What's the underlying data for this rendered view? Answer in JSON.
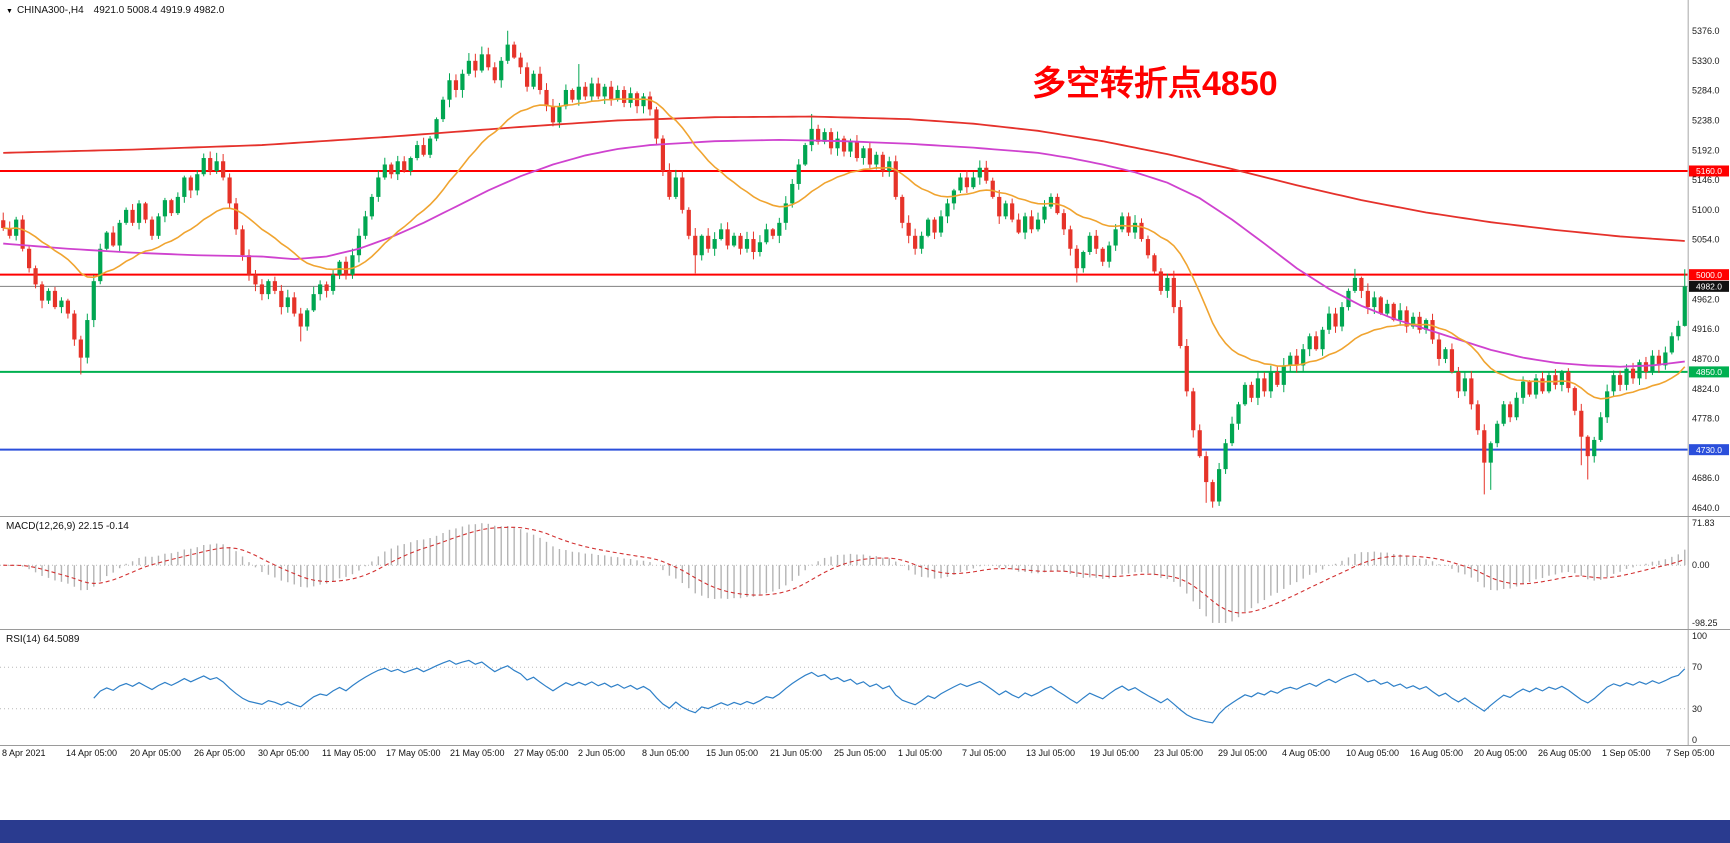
{
  "header": {
    "dropdown_icon": "▼",
    "symbol_period": "CHINA300-,H4",
    "ohlc_text": "4921.0 5008.4 4919.9 4982.0"
  },
  "annotation": {
    "text": "多空转折点4850",
    "color": "#ff0000"
  },
  "panels": {
    "macd": {
      "label": "MACD(12,26,9) 22.15 -0.14"
    },
    "rsi": {
      "label": "RSI(14) 64.5089"
    }
  },
  "ui": {
    "taskbar_color": "#2a3b8f",
    "background": "#ffffff",
    "separator_color": "#9a9a9a"
  },
  "chart_data": {
    "type": "candlestick",
    "symbol": "CHINA300-",
    "timeframe": "H4",
    "current_bar": {
      "open": 4921.0,
      "high": 5008.4,
      "low": 4919.9,
      "close": 4982.0
    },
    "price_range": [
      4640,
      5376
    ],
    "up_color": "#00a651",
    "down_color": "#e63329",
    "y_ticks": [
      5376,
      5330,
      5284,
      5238,
      5192,
      5146,
      5100,
      5054,
      4962,
      4916,
      4870,
      4824,
      4778,
      4686,
      4640
    ],
    "x_labels": [
      "8 Apr 2021",
      "14 Apr 05:00",
      "20 Apr 05:00",
      "26 Apr 05:00",
      "30 Apr 05:00",
      "11 May 05:00",
      "17 May 05:00",
      "21 May 05:00",
      "27 May 05:00",
      "2 Jun 05:00",
      "8 Jun 05:00",
      "15 Jun 05:00",
      "21 Jun 05:00",
      "25 Jun 05:00",
      "1 Jul 05:00",
      "7 Jul 05:00",
      "13 Jul 05:00",
      "19 Jul 05:00",
      "23 Jul 05:00",
      "29 Jul 05:00",
      "4 Aug 05:00",
      "10 Aug 05:00",
      "16 Aug 05:00",
      "20 Aug 05:00",
      "26 Aug 05:00",
      "1 Sep 05:00",
      "7 Sep 05:00"
    ],
    "levels": [
      {
        "price": 5160.0,
        "label": "5160.0",
        "color": "#ff0000",
        "badge": "#ff0000",
        "width": 2
      },
      {
        "price": 5000.0,
        "label": "5000.0",
        "color": "#ff0000",
        "badge": "#ff0000",
        "width": 2
      },
      {
        "price": 4982.0,
        "label": "4982.0",
        "color": "#808080",
        "badge": "#111111",
        "width": 1,
        "role": "current-price"
      },
      {
        "price": 4850.0,
        "label": "4850.0",
        "color": "#00b050",
        "badge": "#00b050",
        "width": 2
      },
      {
        "price": 4730.0,
        "label": "4730.0",
        "color": "#2b4fdb",
        "badge": "#2b4fdb",
        "width": 2
      }
    ],
    "closes": [
      5072,
      5060,
      5085,
      5040,
      5010,
      4985,
      4960,
      4975,
      4950,
      4960,
      4940,
      4900,
      4872,
      4930,
      4990,
      5040,
      5065,
      5045,
      5080,
      5100,
      5080,
      5110,
      5085,
      5060,
      5090,
      5115,
      5095,
      5120,
      5150,
      5130,
      5155,
      5180,
      5160,
      5175,
      5150,
      5110,
      5070,
      5030,
      5000,
      4985,
      4970,
      4990,
      4975,
      4950,
      4965,
      4940,
      4920,
      4945,
      4970,
      4985,
      4975,
      5000,
      5020,
      5000,
      5030,
      5060,
      5090,
      5120,
      5150,
      5170,
      5155,
      5175,
      5160,
      5180,
      5200,
      5185,
      5210,
      5240,
      5270,
      5300,
      5285,
      5310,
      5330,
      5315,
      5340,
      5320,
      5300,
      5330,
      5355,
      5335,
      5320,
      5290,
      5310,
      5285,
      5260,
      5235,
      5260,
      5285,
      5270,
      5290,
      5275,
      5295,
      5275,
      5290,
      5270,
      5285,
      5265,
      5280,
      5260,
      5275,
      5255,
      5210,
      5160,
      5120,
      5150,
      5100,
      5060,
      5030,
      5060,
      5040,
      5055,
      5070,
      5045,
      5060,
      5040,
      5055,
      5035,
      5050,
      5070,
      5060,
      5080,
      5110,
      5140,
      5170,
      5200,
      5225,
      5205,
      5220,
      5195,
      5210,
      5190,
      5205,
      5180,
      5195,
      5170,
      5185,
      5160,
      5175,
      5120,
      5080,
      5060,
      5040,
      5060,
      5085,
      5065,
      5090,
      5110,
      5130,
      5150,
      5135,
      5150,
      5165,
      5145,
      5120,
      5090,
      5110,
      5085,
      5065,
      5090,
      5070,
      5085,
      5105,
      5120,
      5095,
      5070,
      5040,
      5010,
      5035,
      5060,
      5040,
      5020,
      5045,
      5070,
      5090,
      5065,
      5080,
      5055,
      5030,
      5005,
      4975,
      4995,
      4950,
      4890,
      4820,
      4760,
      4720,
      4680,
      4650,
      4700,
      4740,
      4770,
      4800,
      4830,
      4810,
      4840,
      4820,
      4850,
      4830,
      4860,
      4875,
      4860,
      4885,
      4905,
      4885,
      4915,
      4940,
      4920,
      4950,
      4975,
      4995,
      4975,
      4950,
      4965,
      4940,
      4955,
      4930,
      4945,
      4920,
      4935,
      4915,
      4930,
      4900,
      4870,
      4885,
      4850,
      4820,
      4840,
      4800,
      4760,
      4710,
      4740,
      4770,
      4800,
      4780,
      4810,
      4835,
      4815,
      4840,
      4820,
      4845,
      4830,
      4850,
      4825,
      4790,
      4750,
      4720,
      4745,
      4780,
      4820,
      4845,
      4830,
      4855,
      4840,
      4865,
      4850,
      4875,
      4860,
      4880,
      4905,
      4921,
      4982
    ],
    "wick_overrides": {
      "12": [
        null,
        4846
      ],
      "31": [
        5187,
        null
      ],
      "33": [
        5188,
        null
      ],
      "46": [
        null,
        4897
      ],
      "74": [
        5352,
        null
      ],
      "78": [
        5376.4,
        null
      ],
      "89": [
        5325,
        null
      ],
      "107": [
        null,
        5002
      ],
      "125": [
        5248,
        null
      ],
      "166": [
        null,
        4988
      ],
      "186": [
        null,
        4648
      ],
      "187": [
        null,
        4640.5
      ],
      "209": [
        5009,
        null
      ],
      "229": [
        null,
        4661
      ],
      "230": [
        null,
        4668
      ],
      "244": [
        null,
        4706
      ],
      "245": [
        null,
        4684
      ]
    },
    "moving_averages": {
      "orange": {
        "type": "ema",
        "period": 24,
        "color": "#f0a430"
      },
      "magenta": {
        "color": "#cf42cf",
        "waypoints": [
          [
            0,
            5048
          ],
          [
            10,
            5040
          ],
          [
            20,
            5034
          ],
          [
            30,
            5030
          ],
          [
            40,
            5028
          ],
          [
            45,
            5024
          ],
          [
            50,
            5028
          ],
          [
            55,
            5040
          ],
          [
            60,
            5058
          ],
          [
            65,
            5080
          ],
          [
            70,
            5105
          ],
          [
            75,
            5130
          ],
          [
            80,
            5152
          ],
          [
            85,
            5170
          ],
          [
            90,
            5184
          ],
          [
            95,
            5194
          ],
          [
            100,
            5200
          ],
          [
            110,
            5206
          ],
          [
            120,
            5208
          ],
          [
            130,
            5206
          ],
          [
            140,
            5202
          ],
          [
            150,
            5196
          ],
          [
            160,
            5188
          ],
          [
            165,
            5180
          ],
          [
            170,
            5170
          ],
          [
            175,
            5158
          ],
          [
            180,
            5142
          ],
          [
            185,
            5118
          ],
          [
            190,
            5085
          ],
          [
            195,
            5048
          ],
          [
            200,
            5010
          ],
          [
            205,
            4978
          ],
          [
            210,
            4952
          ],
          [
            215,
            4932
          ],
          [
            220,
            4916
          ],
          [
            225,
            4900
          ],
          [
            230,
            4884
          ],
          [
            235,
            4872
          ],
          [
            240,
            4864
          ],
          [
            245,
            4860
          ],
          [
            250,
            4858
          ],
          [
            255,
            4860
          ],
          [
            260,
            4866
          ]
        ]
      },
      "red": {
        "color": "#e5312b",
        "waypoints": [
          [
            0,
            5188
          ],
          [
            20,
            5193
          ],
          [
            40,
            5200
          ],
          [
            60,
            5213
          ],
          [
            80,
            5228
          ],
          [
            95,
            5238
          ],
          [
            110,
            5243
          ],
          [
            125,
            5244
          ],
          [
            140,
            5240
          ],
          [
            150,
            5233
          ],
          [
            160,
            5222
          ],
          [
            170,
            5206
          ],
          [
            180,
            5186
          ],
          [
            190,
            5163
          ],
          [
            200,
            5138
          ],
          [
            210,
            5115
          ],
          [
            220,
            5096
          ],
          [
            230,
            5081
          ],
          [
            240,
            5069
          ],
          [
            250,
            5059
          ],
          [
            260,
            5052
          ]
        ]
      }
    },
    "indicators": {
      "macd": {
        "params": "12,26,9",
        "value": 22.15,
        "signal_delta": -0.14,
        "ylim": [
          -98.25,
          71.83
        ],
        "ticks": [
          [
            71.83,
            "71.83"
          ],
          [
            0,
            "0.00"
          ],
          [
            -98.25,
            "-98.25"
          ]
        ],
        "histogram_color": "#b4b4b4",
        "signal_color": "#d23030"
      },
      "rsi": {
        "params": "14",
        "value": 64.5089,
        "ylim": [
          0,
          100
        ],
        "levels": [
          70,
          30
        ],
        "ticks": [
          [
            100,
            "100"
          ],
          [
            70,
            "70"
          ],
          [
            30,
            "30"
          ],
          [
            0,
            "0"
          ]
        ],
        "line_color": "#2f80c8"
      }
    }
  }
}
